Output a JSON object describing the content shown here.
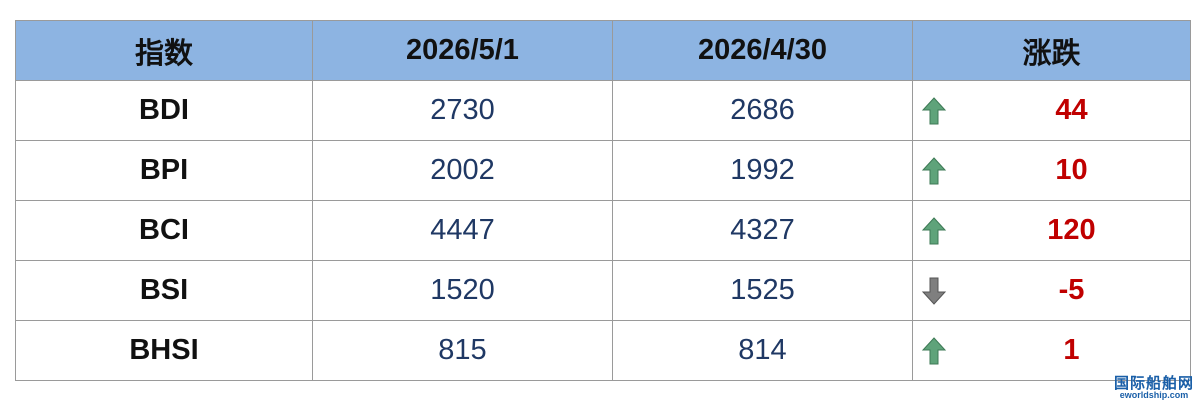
{
  "table": {
    "header": [
      "指数",
      "2026/5/1",
      "2026/4/30",
      "涨跌"
    ],
    "rows": [
      [
        "BDI",
        2730,
        2686,
        44
      ],
      [
        "BPI",
        2002,
        1992,
        10
      ],
      [
        "BCI",
        4447,
        4327,
        120
      ],
      [
        "BSI",
        1520,
        1525,
        -5
      ],
      [
        "BHSI",
        815,
        814,
        1
      ]
    ]
  },
  "watermark": {
    "title": "国际船舶网",
    "url": "eworldship.com"
  }
}
